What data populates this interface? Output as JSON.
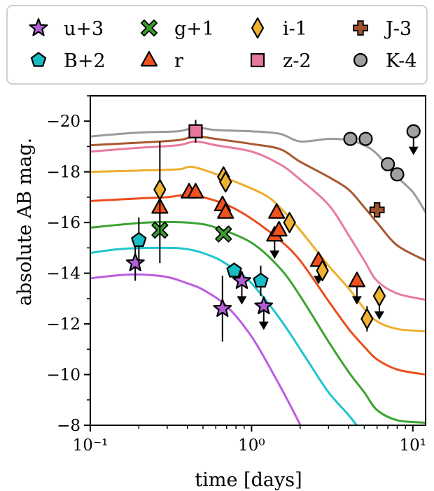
{
  "chart_data": {
    "type": "scatter",
    "title": "",
    "xlabel": "time [days]",
    "ylabel": "absolute AB mag.",
    "x_scale": "log",
    "xlim": [
      0.1,
      12
    ],
    "ylim": [
      -8,
      -21
    ],
    "y_inverted": true,
    "grid": false,
    "legend_position": "top",
    "x_ticks": [
      0.1,
      1,
      10
    ],
    "x_tick_labels": [
      "10⁻¹",
      "10⁰",
      "10¹"
    ],
    "y_ticks": [
      -20,
      -18,
      -16,
      -14,
      -12,
      -10,
      -8
    ],
    "y_tick_labels": [
      "−20",
      "−18",
      "−16",
      "−14",
      "−12",
      "−10",
      "−8"
    ],
    "series": [
      {
        "name": "u+3",
        "marker": "star",
        "color": "#b25ed6",
        "line_color": "#bb5de0",
        "points": [
          {
            "x": 0.19,
            "y": -14.4,
            "err": 0.7,
            "upper": false
          },
          {
            "x": 0.66,
            "y": -12.6,
            "err": 1.3,
            "upper": false
          },
          {
            "x": 0.87,
            "y": -13.7,
            "err": 0,
            "upper": true
          },
          {
            "x": 1.19,
            "y": -12.7,
            "err": 0,
            "upper": true
          }
        ],
        "model": [
          [
            0.1,
            -13.8
          ],
          [
            0.15,
            -13.92
          ],
          [
            0.2,
            -13.95
          ],
          [
            0.3,
            -13.85
          ],
          [
            0.4,
            -13.6
          ],
          [
            0.5,
            -13.35
          ],
          [
            0.7,
            -12.7
          ],
          [
            1.0,
            -11.5
          ],
          [
            1.4,
            -9.9
          ],
          [
            1.8,
            -8.6
          ],
          [
            2.2,
            -7.5
          ]
        ]
      },
      {
        "name": "B+2",
        "marker": "pentagon",
        "color": "#17bcc4",
        "line_color": "#1ec5ce",
        "points": [
          {
            "x": 0.2,
            "y": -15.3,
            "err": 0.9,
            "upper": false
          },
          {
            "x": 0.78,
            "y": -14.1,
            "err": 0,
            "upper": false
          },
          {
            "x": 1.14,
            "y": -13.7,
            "err": 0.6,
            "upper": false
          }
        ],
        "model": [
          [
            0.1,
            -14.8
          ],
          [
            0.15,
            -14.95
          ],
          [
            0.25,
            -15.0
          ],
          [
            0.4,
            -14.95
          ],
          [
            0.6,
            -14.6
          ],
          [
            0.8,
            -14.1
          ],
          [
            1.0,
            -13.6
          ],
          [
            1.5,
            -12.2
          ],
          [
            2.2,
            -10.6
          ],
          [
            3.0,
            -9.3
          ],
          [
            4.0,
            -8.4
          ],
          [
            4.6,
            -7.9
          ]
        ]
      },
      {
        "name": "g+1",
        "marker": "x",
        "color": "#3b9a2e",
        "line_color": "#3ca432",
        "points": [
          {
            "x": 0.27,
            "y": -15.7,
            "err": 1.3,
            "upper": false
          },
          {
            "x": 0.67,
            "y": -15.55,
            "err": 0,
            "upper": false
          }
        ],
        "model": [
          [
            0.1,
            -15.8
          ],
          [
            0.2,
            -15.98
          ],
          [
            0.3,
            -16.02
          ],
          [
            0.45,
            -15.97
          ],
          [
            0.6,
            -15.8
          ],
          [
            1.0,
            -15.2
          ],
          [
            1.5,
            -14.2
          ],
          [
            2.0,
            -13.1
          ],
          [
            3.0,
            -11.3
          ],
          [
            4.0,
            -10.1
          ],
          [
            5.0,
            -9.3
          ],
          [
            6.0,
            -8.6
          ],
          [
            8.0,
            -8.2
          ],
          [
            12.0,
            -8.1
          ]
        ]
      },
      {
        "name": "r",
        "marker": "triangle",
        "color": "#f1511e",
        "line_color": "#ec4d1c",
        "points": [
          {
            "x": 0.27,
            "y": -16.6,
            "err": 0,
            "upper": false
          },
          {
            "x": 0.41,
            "y": -17.2,
            "err": 0,
            "upper": false
          },
          {
            "x": 0.45,
            "y": -17.2,
            "err": 0,
            "upper": false
          },
          {
            "x": 0.66,
            "y": -16.7,
            "err": 0,
            "upper": false
          },
          {
            "x": 0.69,
            "y": -16.4,
            "err": 0,
            "upper": false
          },
          {
            "x": 1.39,
            "y": -15.5,
            "err": 0,
            "upper": true
          },
          {
            "x": 1.43,
            "y": -16.4,
            "err": 0,
            "upper": false
          },
          {
            "x": 1.48,
            "y": -15.7,
            "err": 0,
            "upper": false
          },
          {
            "x": 2.6,
            "y": -14.5,
            "err": 0,
            "upper": true
          },
          {
            "x": 4.5,
            "y": -13.7,
            "err": 0,
            "upper": true
          }
        ],
        "model": [
          [
            0.1,
            -16.85
          ],
          [
            0.2,
            -16.95
          ],
          [
            0.3,
            -17.0
          ],
          [
            0.4,
            -17.1
          ],
          [
            0.5,
            -17.0
          ],
          [
            0.7,
            -16.7
          ],
          [
            1.0,
            -16.15
          ],
          [
            1.5,
            -15.3
          ],
          [
            2.0,
            -14.5
          ],
          [
            3.0,
            -12.9
          ],
          [
            4.0,
            -11.8
          ],
          [
            5.0,
            -11.1
          ],
          [
            6.0,
            -10.6
          ],
          [
            8.0,
            -10.2
          ],
          [
            12.0,
            -10.0
          ]
        ]
      },
      {
        "name": "i-1",
        "marker": "diamond",
        "color": "#f0b331",
        "line_color": "#eeae2d",
        "points": [
          {
            "x": 0.27,
            "y": -17.3,
            "err": 1.9,
            "upper": false
          },
          {
            "x": 0.67,
            "y": -17.8,
            "err": 0,
            "upper": false
          },
          {
            "x": 0.69,
            "y": -17.6,
            "err": 0,
            "upper": false
          },
          {
            "x": 1.72,
            "y": -16.0,
            "err": 0,
            "upper": false
          },
          {
            "x": 2.75,
            "y": -14.1,
            "err": 0,
            "upper": false
          },
          {
            "x": 5.2,
            "y": -12.2,
            "err": 0.5,
            "upper": false
          },
          {
            "x": 6.2,
            "y": -13.1,
            "err": 0,
            "upper": true
          }
        ],
        "model": [
          [
            0.1,
            -18.0
          ],
          [
            0.2,
            -18.05
          ],
          [
            0.35,
            -18.1
          ],
          [
            0.42,
            -18.2
          ],
          [
            0.55,
            -18.0
          ],
          [
            0.8,
            -17.6
          ],
          [
            1.2,
            -17.1
          ],
          [
            1.5,
            -16.6
          ],
          [
            2.0,
            -15.7
          ],
          [
            3.0,
            -14.3
          ],
          [
            4.0,
            -13.4
          ],
          [
            5.0,
            -12.6
          ],
          [
            6.0,
            -12.1
          ],
          [
            8.0,
            -11.8
          ],
          [
            12.0,
            -11.7
          ]
        ]
      },
      {
        "name": "z-2",
        "marker": "square",
        "color": "#e8769a",
        "line_color": "#e87b9e",
        "points": [
          {
            "x": 0.45,
            "y": -19.6,
            "err": 0.45,
            "upper": false
          }
        ],
        "model": [
          [
            0.1,
            -18.8
          ],
          [
            0.2,
            -18.95
          ],
          [
            0.35,
            -19.05
          ],
          [
            0.45,
            -19.2
          ],
          [
            0.6,
            -19.05
          ],
          [
            1.0,
            -18.8
          ],
          [
            1.5,
            -18.3
          ],
          [
            2.0,
            -17.7
          ],
          [
            3.0,
            -16.7
          ],
          [
            4.0,
            -15.5
          ],
          [
            5.0,
            -14.5
          ],
          [
            6.0,
            -13.7
          ],
          [
            8.0,
            -13.2
          ],
          [
            12.0,
            -12.95
          ]
        ]
      },
      {
        "name": "J-3",
        "marker": "plus",
        "color": "#a0522d",
        "line_color": "#a8582f",
        "points": [
          {
            "x": 6.0,
            "y": -16.5,
            "err": 0,
            "upper": false
          }
        ],
        "model": [
          [
            0.1,
            -19.05
          ],
          [
            0.2,
            -19.15
          ],
          [
            0.35,
            -19.25
          ],
          [
            0.45,
            -19.4
          ],
          [
            0.6,
            -19.3
          ],
          [
            1.0,
            -19.1
          ],
          [
            1.5,
            -18.9
          ],
          [
            2.0,
            -18.4
          ],
          [
            3.0,
            -17.8
          ],
          [
            4.0,
            -17.3
          ],
          [
            5.0,
            -16.6
          ],
          [
            6.0,
            -16.0
          ],
          [
            8.0,
            -15.1
          ],
          [
            12.0,
            -14.5
          ]
        ]
      },
      {
        "name": "K-4",
        "marker": "circle",
        "color": "#a0a0a0",
        "line_color": "#9a9a9a",
        "points": [
          {
            "x": 4.1,
            "y": -19.3,
            "err": 0,
            "upper": false
          },
          {
            "x": 5.1,
            "y": -19.3,
            "err": 0,
            "upper": false
          },
          {
            "x": 7.0,
            "y": -18.3,
            "err": 0,
            "upper": false
          },
          {
            "x": 8.0,
            "y": -17.9,
            "err": 0,
            "upper": false
          },
          {
            "x": 10.1,
            "y": -19.6,
            "err": 0,
            "upper": true
          }
        ],
        "model": [
          [
            0.1,
            -19.4
          ],
          [
            0.2,
            -19.55
          ],
          [
            0.35,
            -19.6
          ],
          [
            0.45,
            -19.75
          ],
          [
            0.6,
            -19.65
          ],
          [
            1.0,
            -19.6
          ],
          [
            1.5,
            -19.5
          ],
          [
            2.0,
            -19.2
          ],
          [
            3.0,
            -19.3
          ],
          [
            4.0,
            -19.25
          ],
          [
            5.0,
            -19.05
          ],
          [
            6.0,
            -18.7
          ],
          [
            8.0,
            -17.8
          ],
          [
            10.0,
            -17.2
          ],
          [
            12.0,
            -16.4
          ]
        ]
      }
    ]
  }
}
